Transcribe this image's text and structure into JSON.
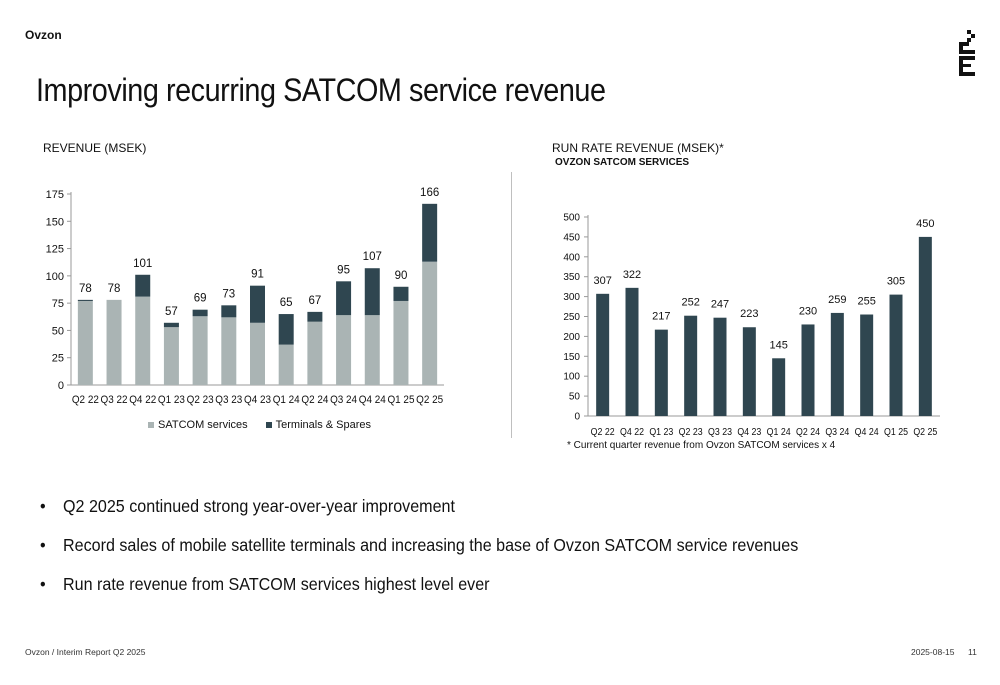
{
  "header": {
    "brand": "Ovzon",
    "title": "Improving recurring SATCOM service revenue"
  },
  "colors": {
    "light": "#aab4b4",
    "dark": "#2f4650",
    "axis": "#999999"
  },
  "chart_data": [
    {
      "type": "bar",
      "stacked": true,
      "subtitle": "REVENUE (MSEK)",
      "categories": [
        "Q2 22",
        "Q3 22",
        "Q4 22",
        "Q1 23",
        "Q2 23",
        "Q3 23",
        "Q4 23",
        "Q1 24",
        "Q2 24",
        "Q3 24",
        "Q4 24",
        "Q1 25",
        "Q2 25"
      ],
      "series": [
        {
          "name": "SATCOM services",
          "values": [
            77,
            78,
            81,
            53,
            63,
            62,
            57,
            37,
            58,
            64,
            64,
            77,
            113
          ]
        },
        {
          "name": "Terminals & Spares",
          "values": [
            1,
            0,
            20,
            4,
            6,
            11,
            34,
            28,
            9,
            31,
            43,
            13,
            53
          ]
        }
      ],
      "totals": [
        78,
        78,
        101,
        57,
        69,
        73,
        91,
        65,
        67,
        95,
        107,
        90,
        166
      ],
      "yticks": [
        0,
        25,
        50,
        75,
        100,
        125,
        150,
        175
      ],
      "ylim": [
        0,
        175
      ],
      "legend": "bottom"
    },
    {
      "type": "bar",
      "subtitle": "RUN RATE REVENUE (MSEK)*",
      "subtitle2": "OVZON SATCOM SERVICES",
      "categories": [
        "Q2 22",
        "Q4 22",
        "Q1 23",
        "Q2 23",
        "Q3 23",
        "Q4 23",
        "Q1 24",
        "Q2 24",
        "Q3 24",
        "Q4 24",
        "Q1 25",
        "Q2 25"
      ],
      "values": [
        307,
        322,
        217,
        252,
        247,
        223,
        145,
        230,
        259,
        255,
        305,
        450
      ],
      "yticks": [
        0,
        50,
        100,
        150,
        200,
        250,
        300,
        350,
        400,
        450,
        500
      ],
      "ylim": [
        0,
        500
      ],
      "footnote": "* Current quarter revenue from Ovzon SATCOM services x 4"
    }
  ],
  "bullets": [
    "Q2 2025 continued strong year-over-year improvement",
    "Record sales of mobile satellite terminals and increasing the base of Ovzon SATCOM service revenues",
    "Run rate revenue from SATCOM services highest level ever"
  ],
  "bullet_glyph": "•",
  "footer": {
    "left": "Ovzon / Interim Report Q2 2025",
    "date": "2025-08-15",
    "page": "11"
  }
}
